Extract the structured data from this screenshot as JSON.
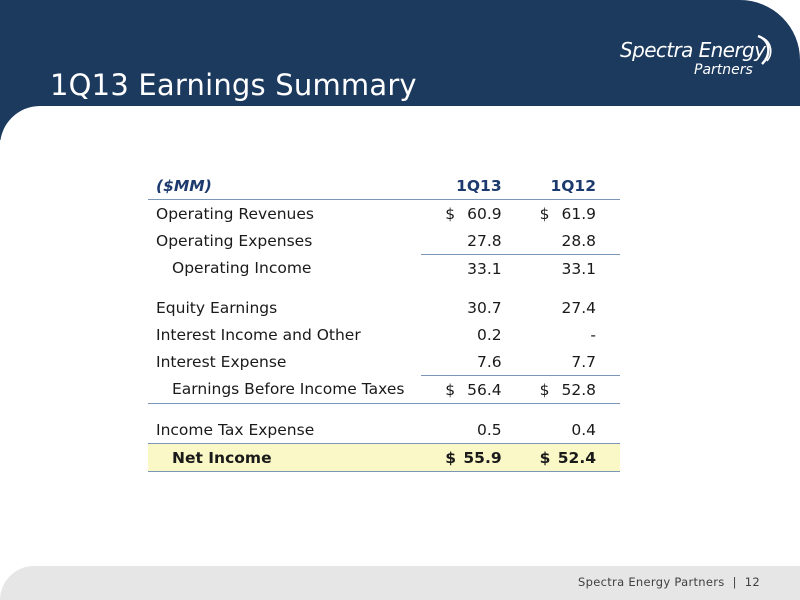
{
  "slide": {
    "title": "1Q13 Earnings Summary",
    "logo_main": "Spectra Energy",
    "logo_sub": "Partners"
  },
  "table": {
    "unit_label": "($MM)",
    "col1": "1Q13",
    "col2": "1Q12",
    "rows": {
      "operating_revenues": {
        "label": "Operating Revenues",
        "v1_prefix": "$",
        "v1": "60.9",
        "v2_prefix": "$",
        "v2": "61.9"
      },
      "operating_expenses": {
        "label": "Operating Expenses",
        "v1": "27.8",
        "v2": "28.8"
      },
      "operating_income": {
        "label": "Operating Income",
        "v1": "33.1",
        "v2": "33.1"
      },
      "equity_earnings": {
        "label": "Equity Earnings",
        "v1": "30.7",
        "v2": "27.4"
      },
      "interest_income_other": {
        "label": "Interest Income and Other",
        "v1": "0.2",
        "v2": "-"
      },
      "interest_expense": {
        "label": "Interest Expense",
        "v1": "7.6",
        "v2": "7.7"
      },
      "ebit": {
        "label": "Earnings Before Income Taxes",
        "v1_prefix": "$",
        "v1": "56.4",
        "v2_prefix": "$",
        "v2": "52.8"
      },
      "income_tax_expense": {
        "label": "Income Tax Expense",
        "v1": "0.5",
        "v2": "0.4"
      },
      "net_income": {
        "label": "Net Income",
        "v1_prefix": "$",
        "v1": "55.9",
        "v2_prefix": "$",
        "v2": "52.4"
      }
    }
  },
  "footer": {
    "company": "Spectra Energy Partners",
    "separator": "|",
    "page": "12"
  },
  "colors": {
    "header_navy": "#1c3a5e",
    "header_text": "#1c3a6e",
    "net_income_highlight": "#fbf8c8",
    "rule": "#7a97b8"
  }
}
